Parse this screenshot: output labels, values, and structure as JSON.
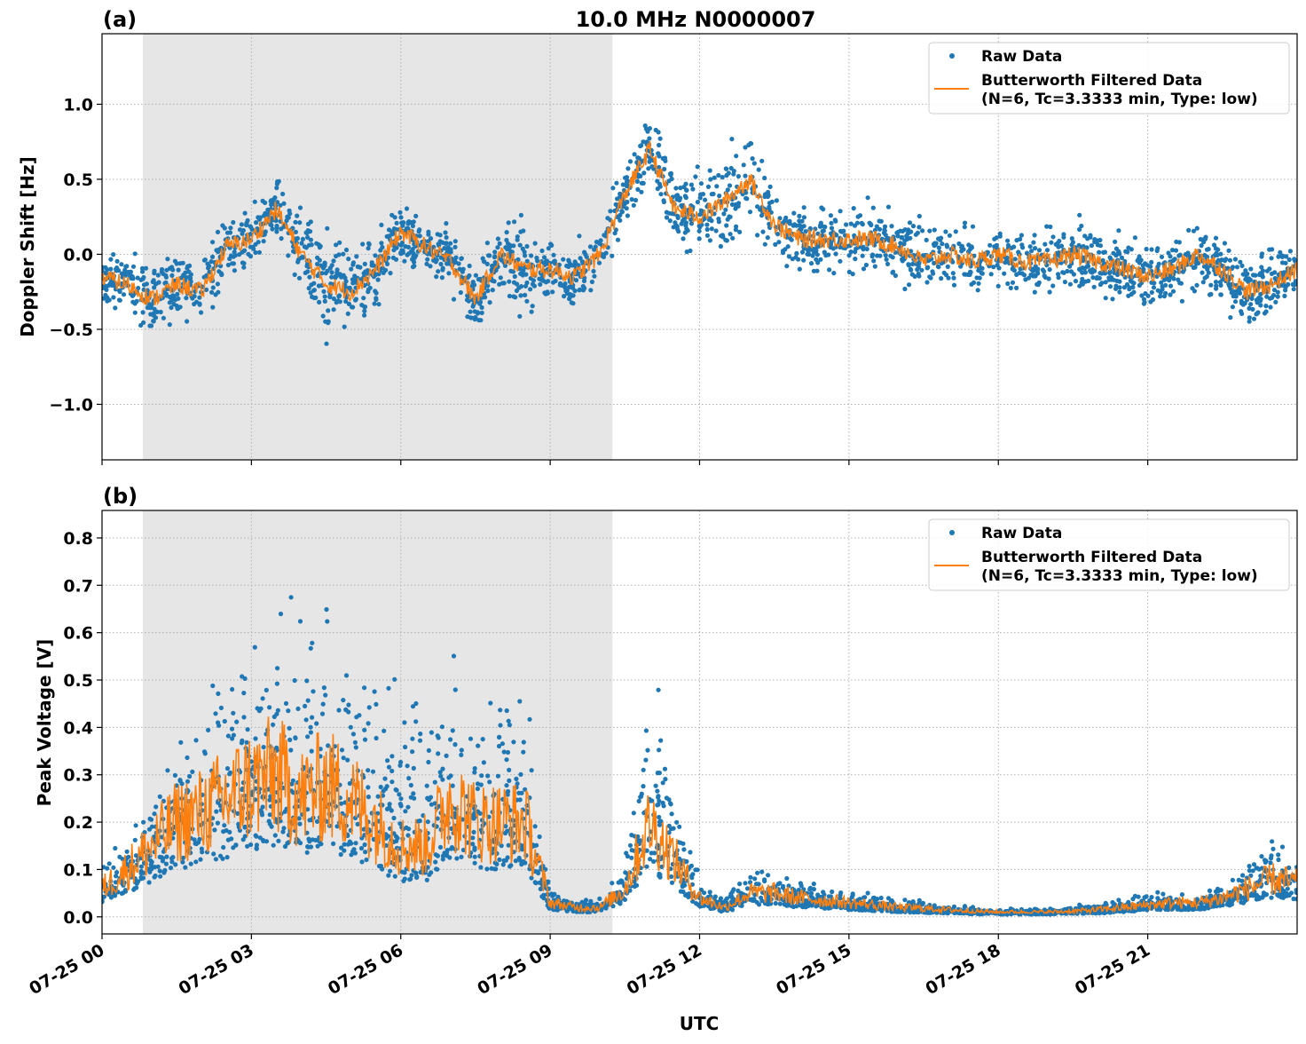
{
  "title": "10.0 MHz N0000007",
  "xlabel": "UTC",
  "colors": {
    "raw": "#1f77b4",
    "filtered": "#ff7f0e",
    "shade": "#e6e6e6"
  },
  "legend": {
    "raw": "Raw Data",
    "filtered_line1": "Butterworth Filtered Data",
    "filtered_line2": "(N=6, Tc=3.3333 min, Type: low)",
    "placement": "top-right"
  },
  "chart_data": [
    {
      "type": "scatter",
      "panel_label": "(a)",
      "ylabel": "Doppler Shift [Hz]",
      "xlim_hours": [
        0,
        24
      ],
      "ylim": [
        -1.37,
        1.47
      ],
      "grid": true,
      "shaded_interval_hours": [
        0.82,
        10.25
      ],
      "x_ticks": [
        "07-25 00",
        "07-25 03",
        "07-25 06",
        "07-25 09",
        "07-25 12",
        "07-25 15",
        "07-25 18",
        "07-25 21"
      ],
      "y_ticks": [
        {
          "v": 1.0,
          "label": "1.0"
        },
        {
          "v": 0.5,
          "label": "0.5"
        },
        {
          "v": 0.0,
          "label": "0.0"
        },
        {
          "v": -0.5,
          "label": "−0.5"
        },
        {
          "v": -1.0,
          "label": "−1.0"
        }
      ],
      "x_hours": [
        0,
        0.5,
        1,
        1.5,
        2,
        2.5,
        3,
        3.5,
        4,
        4.5,
        5,
        5.5,
        6,
        6.5,
        7,
        7.5,
        8,
        8.5,
        9,
        9.5,
        10,
        10.5,
        11,
        11.5,
        12,
        12.5,
        13,
        13.5,
        14,
        14.5,
        15,
        15.5,
        16,
        16.5,
        17,
        17.5,
        18,
        18.5,
        19,
        19.5,
        20,
        20.5,
        21,
        21.5,
        22,
        22.5,
        23,
        23.5,
        24
      ],
      "filtered": [
        -0.15,
        -0.2,
        -0.3,
        -0.2,
        -0.25,
        0.05,
        0.1,
        0.3,
        0.0,
        -0.2,
        -0.25,
        -0.1,
        0.15,
        0.05,
        -0.05,
        -0.3,
        0.0,
        -0.1,
        -0.1,
        -0.15,
        0.0,
        0.4,
        0.7,
        0.3,
        0.25,
        0.35,
        0.5,
        0.2,
        0.1,
        0.1,
        0.1,
        0.1,
        0.05,
        -0.05,
        0.0,
        -0.05,
        0.0,
        -0.05,
        -0.05,
        0.0,
        -0.05,
        -0.1,
        -0.15,
        -0.1,
        0.0,
        -0.1,
        -0.25,
        -0.2,
        -0.1
      ],
      "raw_spread": [
        0.2,
        0.25,
        0.35,
        0.3,
        0.35,
        0.25,
        0.3,
        0.3,
        0.35,
        0.45,
        0.4,
        0.3,
        0.25,
        0.2,
        0.25,
        0.3,
        0.3,
        0.4,
        0.3,
        0.3,
        0.25,
        0.3,
        0.3,
        0.3,
        0.35,
        0.45,
        0.45,
        0.3,
        0.3,
        0.3,
        0.3,
        0.3,
        0.3,
        0.3,
        0.25,
        0.25,
        0.25,
        0.25,
        0.3,
        0.3,
        0.3,
        0.3,
        0.3,
        0.3,
        0.3,
        0.3,
        0.35,
        0.3,
        0.25
      ]
    },
    {
      "type": "scatter",
      "panel_label": "(b)",
      "ylabel": "Peak Voltage [V]",
      "xlim_hours": [
        0,
        24
      ],
      "ylim": [
        -0.036,
        0.858
      ],
      "grid": true,
      "shaded_interval_hours": [
        0.82,
        10.25
      ],
      "x_ticks": [
        "07-25 00",
        "07-25 03",
        "07-25 06",
        "07-25 09",
        "07-25 12",
        "07-25 15",
        "07-25 18",
        "07-25 21"
      ],
      "y_ticks": [
        {
          "v": 0.0,
          "label": "0.0"
        },
        {
          "v": 0.1,
          "label": "0.1"
        },
        {
          "v": 0.2,
          "label": "0.2"
        },
        {
          "v": 0.3,
          "label": "0.3"
        },
        {
          "v": 0.4,
          "label": "0.4"
        },
        {
          "v": 0.5,
          "label": "0.5"
        },
        {
          "v": 0.6,
          "label": "0.6"
        },
        {
          "v": 0.7,
          "label": "0.7"
        },
        {
          "v": 0.8,
          "label": "0.8"
        }
      ],
      "x_hours": [
        0,
        0.5,
        1,
        1.5,
        2,
        2.5,
        3,
        3.5,
        4,
        4.5,
        5,
        5.5,
        6,
        6.5,
        7,
        7.5,
        8,
        8.5,
        9,
        9.5,
        10,
        10.5,
        11,
        11.5,
        12,
        12.5,
        13,
        13.5,
        14,
        14.5,
        15,
        15.5,
        16,
        16.5,
        17,
        17.5,
        18,
        18.5,
        19,
        19.5,
        20,
        20.5,
        21,
        21.5,
        22,
        22.5,
        23,
        23.5,
        24
      ],
      "filtered": [
        0.06,
        0.1,
        0.15,
        0.2,
        0.22,
        0.25,
        0.28,
        0.3,
        0.25,
        0.28,
        0.25,
        0.2,
        0.15,
        0.15,
        0.25,
        0.2,
        0.2,
        0.2,
        0.03,
        0.02,
        0.02,
        0.06,
        0.2,
        0.12,
        0.04,
        0.02,
        0.05,
        0.05,
        0.04,
        0.035,
        0.03,
        0.025,
        0.02,
        0.018,
        0.015,
        0.012,
        0.01,
        0.01,
        0.01,
        0.012,
        0.015,
        0.02,
        0.025,
        0.03,
        0.03,
        0.04,
        0.06,
        0.08,
        0.07
      ],
      "raw_spread": [
        0.08,
        0.12,
        0.2,
        0.3,
        0.35,
        0.4,
        0.45,
        0.45,
        0.45,
        0.45,
        0.45,
        0.4,
        0.35,
        0.35,
        0.4,
        0.35,
        0.35,
        0.3,
        0.05,
        0.02,
        0.03,
        0.08,
        0.45,
        0.2,
        0.05,
        0.03,
        0.08,
        0.07,
        0.05,
        0.04,
        0.035,
        0.03,
        0.025,
        0.02,
        0.015,
        0.012,
        0.012,
        0.012,
        0.012,
        0.015,
        0.02,
        0.025,
        0.04,
        0.03,
        0.03,
        0.05,
        0.1,
        0.12,
        0.1
      ]
    }
  ]
}
